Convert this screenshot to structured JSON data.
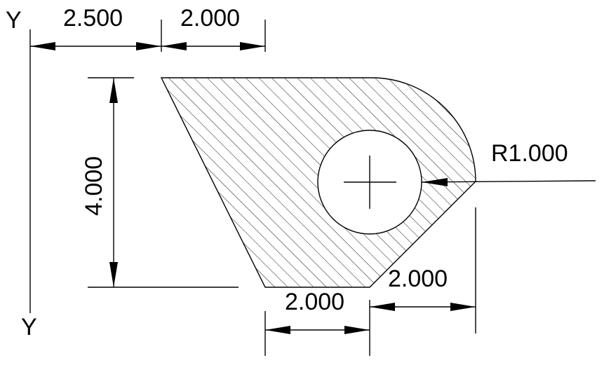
{
  "axis": {
    "top_label": "Y",
    "bottom_label": "Y"
  },
  "dimensions": {
    "top_left_width": "2.500",
    "top_right_width": "2.000",
    "height": "4.000",
    "radius": "R1.000",
    "bottom_left_width": "2.000",
    "bottom_right_width": "2.000"
  }
}
